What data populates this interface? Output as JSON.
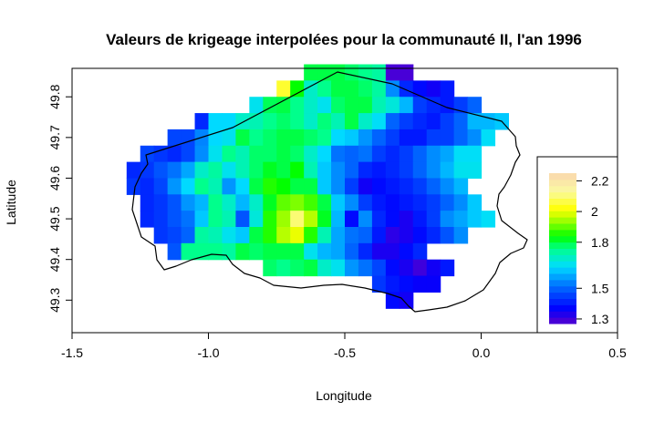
{
  "chart_data": {
    "type": "heatmap",
    "title": "Valeurs de krigeage interpolées pour la communauté II, l'an 1996",
    "xlabel": "Longitude",
    "ylabel": "Latitude",
    "xlim": [
      -1.5,
      0.5
    ],
    "ylim": [
      49.22,
      49.87
    ],
    "x_ticks": [
      -1.5,
      -1.0,
      -0.5,
      0.0,
      0.5
    ],
    "x_tick_labels": [
      "-1.5",
      "-1.0",
      "-0.5",
      "0.0",
      "0.5"
    ],
    "y_ticks": [
      49.3,
      49.4,
      49.5,
      49.6,
      49.7,
      49.8
    ],
    "y_tick_labels": [
      "49.3",
      "49.4",
      "49.5",
      "49.6",
      "49.7",
      "49.8"
    ],
    "grid": false,
    "legend": {
      "placement": "right",
      "ticks": [
        2.2,
        2.0,
        1.8,
        1.5,
        1.3
      ],
      "tick_labels": [
        "2.2",
        "2",
        "1.8",
        "1.5",
        "1.3"
      ],
      "scale_min": 1.27,
      "scale_max": 2.25
    },
    "grid_cells": {
      "x0": -1.3,
      "y_top": 49.88,
      "dx": 0.05,
      "dy": 0.04,
      "rows": [
        {
          "start": 13,
          "values": [
            1.8,
            1.8,
            1.8,
            1.78,
            1.76,
            1.74,
            1.29,
            1.29
          ]
        },
        {
          "start": 11,
          "values": [
            2.05,
            1.84,
            1.7,
            1.76,
            1.8,
            1.8,
            1.78,
            1.74,
            1.55,
            1.42,
            1.38,
            1.35,
            1.4
          ]
        },
        {
          "start": 9,
          "values": [
            1.66,
            1.79,
            1.8,
            1.76,
            1.7,
            1.66,
            1.78,
            1.8,
            1.8,
            1.72,
            1.68,
            1.6,
            1.45,
            1.42,
            1.4,
            1.45,
            1.5
          ]
        },
        {
          "start": 5,
          "values": [
            1.42,
            1.64,
            1.64,
            1.7,
            1.72,
            1.76,
            1.78,
            1.76,
            1.7,
            1.77,
            1.72,
            1.8,
            1.7,
            1.65,
            1.5,
            1.45,
            1.42,
            1.4,
            1.45,
            1.5,
            1.6,
            1.6,
            1.62
          ]
        },
        {
          "start": 3,
          "values": [
            1.46,
            1.46,
            1.54,
            1.64,
            1.66,
            1.8,
            1.76,
            1.78,
            1.8,
            1.8,
            1.78,
            1.76,
            1.64,
            1.62,
            1.56,
            1.5,
            1.45,
            1.4,
            1.4,
            1.45,
            1.45,
            1.5,
            1.55,
            1.65
          ]
        },
        {
          "start": 1,
          "values": [
            1.46,
            1.44,
            1.42,
            1.46,
            1.55,
            1.66,
            1.76,
            1.72,
            1.78,
            1.78,
            1.8,
            1.78,
            1.7,
            1.64,
            1.52,
            1.5,
            1.52,
            1.45,
            1.42,
            1.45,
            1.5,
            1.55,
            1.58,
            1.65,
            1.65
          ]
        },
        {
          "start": 0,
          "values": [
            1.42,
            1.44,
            1.48,
            1.52,
            1.58,
            1.7,
            1.74,
            1.66,
            1.72,
            1.78,
            1.82,
            1.8,
            1.84,
            1.72,
            1.62,
            1.55,
            1.5,
            1.42,
            1.4,
            1.42,
            1.45,
            1.5,
            1.55,
            1.6,
            1.66,
            1.66
          ]
        },
        {
          "start": 0,
          "values": [
            1.44,
            1.42,
            1.46,
            1.56,
            1.64,
            1.76,
            1.72,
            1.56,
            1.64,
            1.8,
            1.86,
            1.84,
            1.8,
            1.8,
            1.62,
            1.55,
            1.45,
            1.35,
            1.38,
            1.4,
            1.42,
            1.45,
            1.5,
            1.55,
            1.6
          ]
        },
        {
          "start": 1,
          "values": [
            1.42,
            1.44,
            1.48,
            1.56,
            1.6,
            1.76,
            1.7,
            1.6,
            1.7,
            1.82,
            1.9,
            1.92,
            1.88,
            1.8,
            1.62,
            1.55,
            1.45,
            1.4,
            1.38,
            1.4,
            1.42,
            1.45,
            1.5,
            1.55,
            1.62
          ]
        },
        {
          "start": 1,
          "values": [
            1.42,
            1.44,
            1.48,
            1.52,
            1.62,
            1.76,
            1.72,
            1.48,
            1.68,
            1.86,
            1.94,
            2.1,
            1.96,
            1.82,
            1.6,
            1.38,
            1.55,
            1.42,
            1.38,
            1.34,
            1.4,
            1.45,
            1.55,
            1.58,
            1.62,
            1.65
          ]
        },
        {
          "start": 2,
          "values": [
            1.44,
            1.46,
            1.5,
            1.74,
            1.72,
            1.66,
            1.62,
            1.8,
            1.86,
            1.96,
            2.0,
            1.86,
            1.72,
            1.58,
            1.52,
            1.5,
            1.4,
            1.32,
            1.34,
            1.38,
            1.42,
            1.48,
            1.55
          ]
        },
        {
          "start": 3,
          "values": [
            1.48,
            1.76,
            1.76,
            1.76,
            1.74,
            1.8,
            1.78,
            1.8,
            1.8,
            1.8,
            1.66,
            1.6,
            1.58,
            1.5,
            1.42,
            1.34,
            1.34,
            1.38,
            1.42
          ]
        },
        {
          "start": 10,
          "values": [
            1.78,
            1.76,
            1.78,
            1.8,
            1.7,
            1.66,
            1.56,
            1.52,
            1.46,
            1.38,
            1.34,
            1.3,
            1.35,
            1.4
          ]
        },
        {
          "start": 18,
          "values": [
            1.44,
            1.4,
            1.38,
            1.36,
            1.36
          ]
        },
        {
          "start": 19,
          "values": [
            1.38,
            1.35
          ]
        }
      ]
    }
  }
}
